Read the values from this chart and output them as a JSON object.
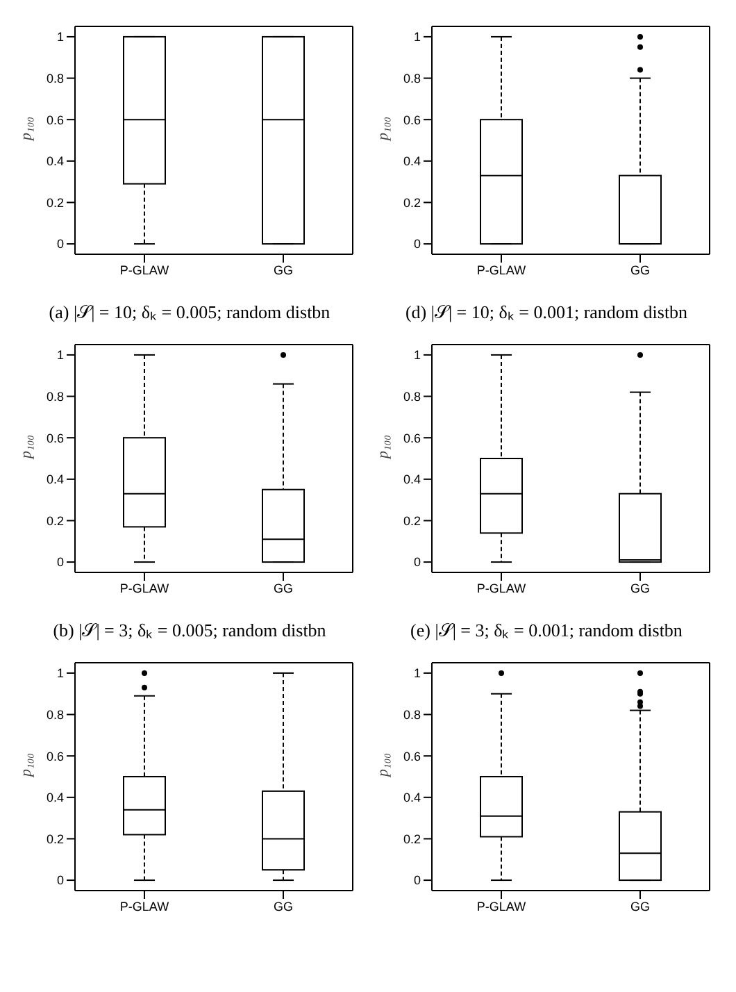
{
  "chart_data": [
    {
      "type": "box",
      "categories": [
        "P-GLAW",
        "GG"
      ],
      "ylabel": "p₁₀₀",
      "ylim": [
        -0.05,
        1.05
      ],
      "yticks": [
        0,
        0.2,
        0.4,
        0.6,
        0.8,
        1
      ],
      "annotations": [
        "(a) |𝒮| = 10; δₖ = 0.005; random distbn"
      ],
      "boxes": [
        {
          "low": 0,
          "q1": 0.29,
          "median": 0.6,
          "q3": 1,
          "high": 1
        },
        {
          "low": 0,
          "q1": 0,
          "median": 0.6,
          "q3": 1,
          "high": 1
        }
      ]
    },
    {
      "type": "box",
      "categories": [
        "P-GLAW",
        "GG"
      ],
      "ylabel": "p₁₀₀",
      "ylim": [
        -0.05,
        1.05
      ],
      "yticks": [
        0,
        0.2,
        0.4,
        0.6,
        0.8,
        1
      ],
      "annotations": [
        "(d) |𝒮| = 10; δₖ = 0.001; random distbn"
      ],
      "boxes": [
        {
          "low": 0,
          "q1": 0,
          "median": 0.33,
          "q3": 0.6,
          "high": 1
        },
        {
          "low": 0,
          "q1": 0,
          "median": 0,
          "q3": 0.33,
          "high": 0.8,
          "outliers": [
            0.84,
            0.95,
            1
          ]
        }
      ]
    },
    {
      "type": "box",
      "categories": [
        "P-GLAW",
        "GG"
      ],
      "ylabel": "p₁₀₀",
      "ylim": [
        -0.05,
        1.05
      ],
      "yticks": [
        0,
        0.2,
        0.4,
        0.6,
        0.8,
        1
      ],
      "annotations": [
        "(b) |𝒮| = 3; δₖ = 0.005; random distbn"
      ],
      "boxes": [
        {
          "low": 0,
          "q1": 0.17,
          "median": 0.33,
          "q3": 0.6,
          "high": 1
        },
        {
          "low": 0,
          "q1": 0,
          "median": 0.11,
          "q3": 0.35,
          "high": 0.86,
          "outliers": [
            1
          ]
        }
      ]
    },
    {
      "type": "box",
      "categories": [
        "P-GLAW",
        "GG"
      ],
      "ylabel": "p₁₀₀",
      "ylim": [
        -0.05,
        1.05
      ],
      "yticks": [
        0,
        0.2,
        0.4,
        0.6,
        0.8,
        1
      ],
      "annotations": [
        "(e) |𝒮| = 3; δₖ = 0.001; random distbn"
      ],
      "boxes": [
        {
          "low": 0,
          "q1": 0.14,
          "median": 0.33,
          "q3": 0.5,
          "high": 1
        },
        {
          "low": 0,
          "q1": 0,
          "median": 0.01,
          "q3": 0.33,
          "high": 0.82,
          "outliers": [
            1
          ]
        }
      ]
    },
    {
      "type": "box",
      "categories": [
        "P-GLAW",
        "GG"
      ],
      "ylabel": "p₁₀₀",
      "ylim": [
        -0.05,
        1.05
      ],
      "yticks": [
        0,
        0.2,
        0.4,
        0.6,
        0.8,
        1
      ],
      "boxes": [
        {
          "low": 0,
          "q1": 0.22,
          "median": 0.34,
          "q3": 0.5,
          "high": 0.89,
          "outliers": [
            0.93,
            1
          ]
        },
        {
          "low": 0,
          "q1": 0.05,
          "median": 0.2,
          "q3": 0.43,
          "high": 1
        }
      ]
    },
    {
      "type": "box",
      "categories": [
        "P-GLAW",
        "GG"
      ],
      "ylabel": "p₁₀₀",
      "ylim": [
        -0.05,
        1.05
      ],
      "yticks": [
        0,
        0.2,
        0.4,
        0.6,
        0.8,
        1
      ],
      "boxes": [
        {
          "low": 0,
          "q1": 0.21,
          "median": 0.31,
          "q3": 0.5,
          "high": 0.9,
          "outliers": [
            1
          ]
        },
        {
          "low": 0,
          "q1": 0,
          "median": 0.13,
          "q3": 0.33,
          "high": 0.82,
          "outliers": [
            0.84,
            0.86,
            0.9,
            0.91,
            1
          ]
        }
      ]
    }
  ]
}
